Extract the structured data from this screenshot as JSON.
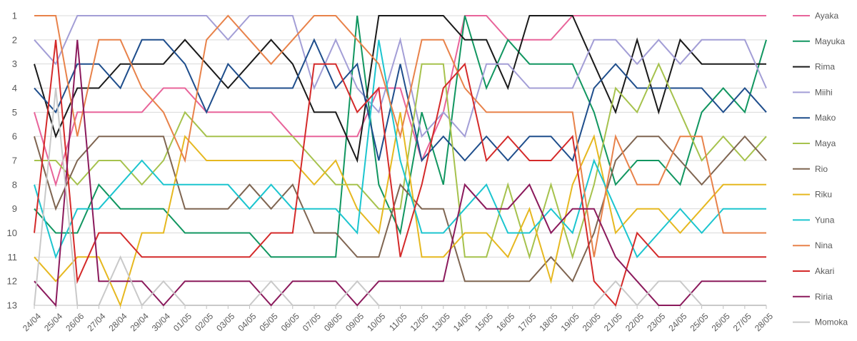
{
  "chart_data": {
    "type": "line",
    "title": "",
    "xlabel": "",
    "ylabel": "",
    "y_reversed": true,
    "ylim": [
      1,
      13
    ],
    "grid": {
      "horizontal": true,
      "vertical": false
    },
    "legend_position": "right",
    "y_ticks": [
      "1",
      "2",
      "3",
      "4",
      "5",
      "6",
      "7",
      "8",
      "9",
      "10",
      "11",
      "12",
      "13"
    ],
    "x": [
      "24/04",
      "25/04",
      "26/06",
      "27/04",
      "28/04",
      "29/04",
      "30/04",
      "01/05",
      "02/05",
      "03/05",
      "04/05",
      "05/05",
      "06/05",
      "07/05",
      "08/05",
      "09/05",
      "10/05",
      "11/05",
      "12/05",
      "13/05",
      "14/05",
      "15/05",
      "16/05",
      "17/05",
      "18/05",
      "19/05",
      "20/05",
      "21/05",
      "22/05",
      "23/05",
      "24/05",
      "25/05",
      "26/05",
      "27/05",
      "28/05"
    ],
    "series": [
      {
        "name": "Ayaka",
        "color": "#E8649A",
        "values": [
          5,
          8,
          5,
          5,
          5,
          5,
          4,
          4,
          5,
          5,
          5,
          5,
          6,
          6,
          6,
          6,
          4,
          4,
          7,
          5,
          1,
          1,
          2,
          2,
          2,
          1,
          1,
          1,
          1,
          1,
          1,
          1,
          1,
          1,
          1
        ]
      },
      {
        "name": "Mayuka",
        "color": "#119660",
        "values": [
          9,
          10,
          10,
          8,
          9,
          9,
          9,
          10,
          10,
          10,
          10,
          11,
          11,
          11,
          11,
          1,
          8,
          10,
          5,
          8,
          1,
          4,
          2,
          3,
          3,
          3,
          5,
          8,
          7,
          7,
          8,
          5,
          4,
          5,
          2
        ]
      },
      {
        "name": "Rima",
        "color": "#1a1a1a",
        "values": [
          3,
          6,
          4,
          4,
          3,
          3,
          3,
          2,
          3,
          4,
          3,
          2,
          3,
          5,
          5,
          7,
          1,
          1,
          1,
          1,
          2,
          2,
          4,
          1,
          1,
          1,
          3,
          5,
          2,
          5,
          2,
          3,
          3,
          3,
          3
        ]
      },
      {
        "name": "Miihi",
        "color": "#a39ed6",
        "values": [
          2,
          3,
          1,
          1,
          1,
          1,
          1,
          1,
          1,
          2,
          1,
          1,
          1,
          4,
          2,
          4,
          5,
          2,
          6,
          5,
          6,
          3,
          3,
          4,
          4,
          4,
          2,
          2,
          3,
          2,
          3,
          2,
          2,
          2,
          4
        ]
      },
      {
        "name": "Mako",
        "color": "#1f4e8c",
        "values": [
          4,
          5,
          3,
          3,
          4,
          2,
          2,
          3,
          5,
          3,
          4,
          4,
          4,
          2,
          4,
          3,
          7,
          3,
          7,
          6,
          7,
          6,
          7,
          6,
          6,
          7,
          4,
          3,
          4,
          4,
          4,
          4,
          5,
          4,
          5
        ]
      },
      {
        "name": "Maya",
        "color": "#a6c24d",
        "values": [
          7,
          7,
          8,
          7,
          7,
          8,
          7,
          5,
          6,
          6,
          6,
          6,
          6,
          7,
          8,
          8,
          9,
          9,
          3,
          3,
          11,
          11,
          8,
          11,
          8,
          11,
          8,
          4,
          5,
          3,
          5,
          7,
          6,
          7,
          6
        ]
      },
      {
        "name": "Rio",
        "color": "#7f6551",
        "values": [
          6,
          9,
          7,
          6,
          6,
          6,
          6,
          9,
          9,
          9,
          8,
          9,
          8,
          10,
          10,
          11,
          11,
          8,
          9,
          9,
          12,
          12,
          12,
          12,
          11,
          12,
          10,
          7,
          6,
          6,
          7,
          8,
          7,
          6,
          7
        ]
      },
      {
        "name": "Riku",
        "color": "#e6b820",
        "values": [
          11,
          12,
          11,
          11,
          13,
          10,
          10,
          6,
          7,
          7,
          7,
          7,
          7,
          8,
          7,
          9,
          10,
          5,
          11,
          11,
          10,
          10,
          11,
          9,
          12,
          8,
          6,
          10,
          9,
          9,
          10,
          9,
          8,
          8,
          8
        ]
      },
      {
        "name": "Yuna",
        "color": "#1cc5cf",
        "values": [
          8,
          11,
          9,
          9,
          8,
          7,
          8,
          8,
          8,
          8,
          9,
          8,
          9,
          9,
          9,
          10,
          2,
          7,
          10,
          10,
          9,
          8,
          10,
          10,
          9,
          10,
          7,
          9,
          11,
          10,
          9,
          10,
          9,
          9,
          9
        ]
      },
      {
        "name": "Nina",
        "color": "#e8824a",
        "values": [
          1,
          1,
          6,
          2,
          2,
          4,
          5,
          7,
          2,
          1,
          2,
          3,
          2,
          1,
          1,
          2,
          3,
          6,
          2,
          2,
          4,
          5,
          5,
          5,
          5,
          5,
          11,
          6,
          8,
          8,
          6,
          6,
          10,
          10,
          10
        ]
      },
      {
        "name": "Akari",
        "color": "#d42a2a",
        "values": [
          10,
          2,
          12,
          10,
          10,
          11,
          11,
          11,
          11,
          11,
          11,
          10,
          10,
          3,
          3,
          5,
          4,
          11,
          8,
          4,
          3,
          7,
          6,
          7,
          7,
          6,
          12,
          13,
          10,
          11,
          11,
          11,
          11,
          11,
          11
        ]
      },
      {
        "name": "Riria",
        "color": "#8b1a5c",
        "values": [
          12,
          13,
          2,
          12,
          12,
          12,
          13,
          12,
          12,
          12,
          12,
          13,
          12,
          12,
          12,
          13,
          12,
          12,
          12,
          12,
          8,
          9,
          9,
          8,
          10,
          9,
          9,
          11,
          12,
          13,
          13,
          12,
          12,
          12,
          12
        ]
      },
      {
        "name": "Momoka",
        "color": "#c9c9c9",
        "values": [
          13,
          4,
          13,
          13,
          11,
          13,
          12,
          13,
          13,
          13,
          13,
          12,
          13,
          13,
          13,
          12,
          13,
          13,
          13,
          13,
          13,
          13,
          13,
          13,
          13,
          13,
          13,
          12,
          13,
          12,
          12,
          13,
          13,
          13,
          13
        ]
      }
    ]
  }
}
